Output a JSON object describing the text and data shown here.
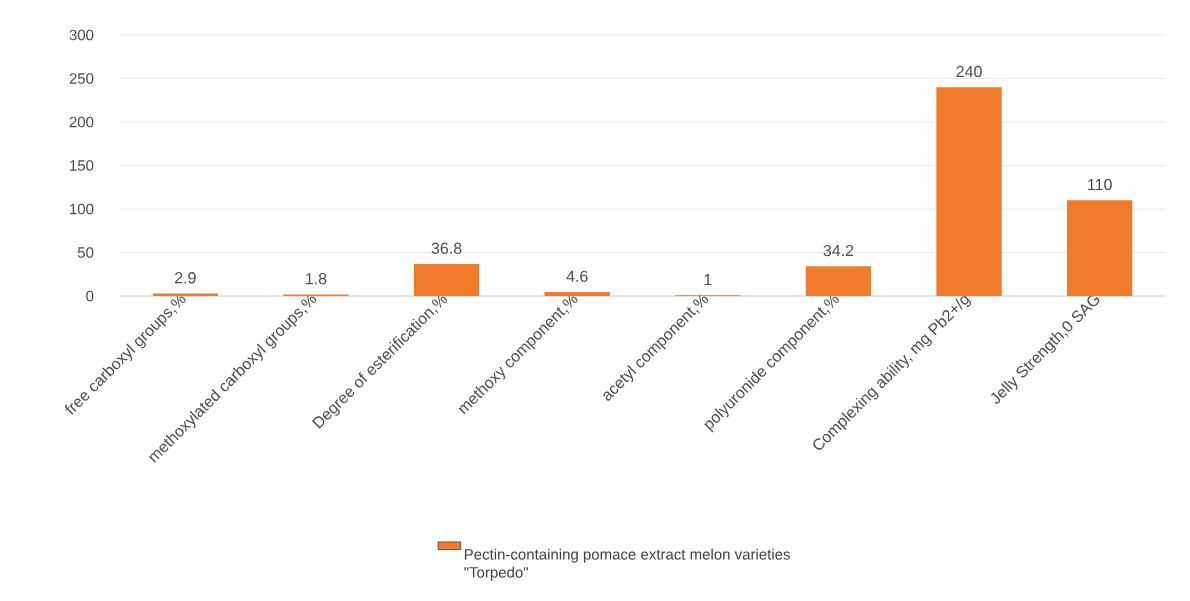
{
  "chart_data": {
    "type": "bar",
    "categories": [
      "free carboxyl groups,%",
      "methoxylated carboxyl groups,%",
      "Degree of esterification,%",
      "methoxy component,%",
      "acetyl component,%",
      "polyuronide component,%",
      "Complexing ability, mg Pb2+/g",
      "Jelly Strength,0 SAG"
    ],
    "series": [
      {
        "name": "Pectin-containing pomace extract melon varieties \"Torpedo\"",
        "color": "#f07b2a",
        "values": [
          2.9,
          1.8,
          36.8,
          4.6,
          1,
          34.2,
          240,
          110
        ]
      }
    ],
    "ylim": [
      0,
      300
    ],
    "yticks": [
      0,
      50,
      100,
      150,
      200,
      250,
      300
    ],
    "grid": "y",
    "legend": "bottom",
    "data_labels": true
  }
}
